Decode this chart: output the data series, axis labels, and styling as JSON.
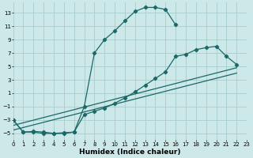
{
  "xlabel": "Humidex (Indice chaleur)",
  "background_color": "#cce8e8",
  "grid_color": "#a8cccc",
  "line_color": "#1a6868",
  "xlim": [
    0,
    23
  ],
  "ylim": [
    -6,
    14.5
  ],
  "xticks": [
    0,
    1,
    2,
    3,
    4,
    5,
    6,
    7,
    8,
    9,
    10,
    11,
    12,
    13,
    14,
    15,
    16,
    17,
    18,
    19,
    20,
    21,
    22,
    23
  ],
  "yticks": [
    -5,
    -3,
    -1,
    1,
    3,
    5,
    7,
    9,
    11,
    13
  ],
  "curve1_x": [
    0,
    1,
    2,
    3,
    4,
    5,
    6,
    7,
    8,
    9,
    10,
    11,
    12,
    13,
    14,
    15,
    16
  ],
  "curve1_y": [
    -3,
    -4.8,
    -4.8,
    -5,
    -5,
    -5,
    -4.8,
    -1.0,
    7.0,
    9.0,
    10.3,
    11.8,
    13.2,
    13.8,
    13.8,
    13.5,
    11.2
  ],
  "curve2_x": [
    0,
    1,
    2,
    3,
    4,
    5,
    6,
    7,
    8,
    9,
    10,
    11,
    12,
    13,
    14,
    15,
    16,
    17,
    18,
    19,
    20,
    21,
    22
  ],
  "curve2_y": [
    -3,
    -4.8,
    -4.7,
    -4.8,
    -5.0,
    -4.9,
    -4.8,
    -2.2,
    -1.7,
    -1.2,
    -0.5,
    0.3,
    1.2,
    2.2,
    3.2,
    4.2,
    6.5,
    6.8,
    7.5,
    7.8,
    8.0,
    6.5,
    5.3
  ],
  "line1_x": [
    0,
    22
  ],
  "line1_y": [
    -3.8,
    4.8
  ],
  "line2_x": [
    0,
    22
  ],
  "line2_y": [
    -4.5,
    4.0
  ],
  "endpt_x": 22,
  "endpt_y": 5.0
}
